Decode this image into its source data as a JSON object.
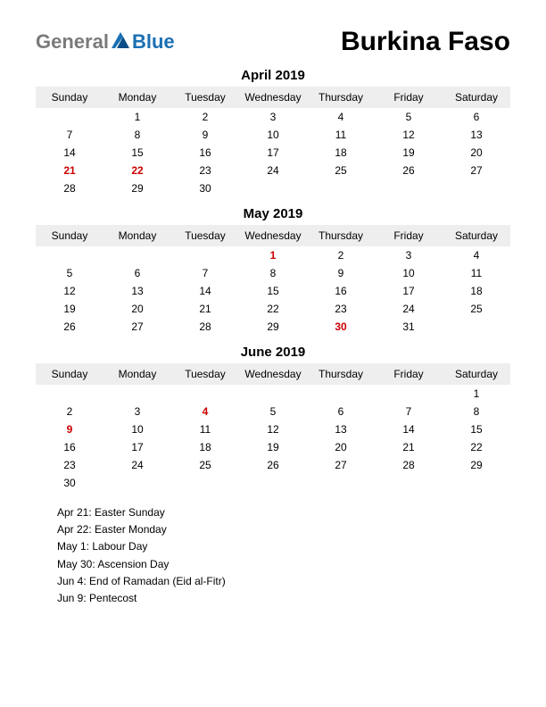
{
  "header": {
    "logo_general": "General",
    "logo_blue": "Blue",
    "country": "Burkina Faso"
  },
  "dayHeaders": [
    "Sunday",
    "Monday",
    "Tuesday",
    "Wednesday",
    "Thursday",
    "Friday",
    "Saturday"
  ],
  "months": [
    {
      "title": "April 2019",
      "weeks": [
        [
          {
            "d": ""
          },
          {
            "d": "1"
          },
          {
            "d": "2"
          },
          {
            "d": "3"
          },
          {
            "d": "4"
          },
          {
            "d": "5"
          },
          {
            "d": "6"
          }
        ],
        [
          {
            "d": "7"
          },
          {
            "d": "8"
          },
          {
            "d": "9"
          },
          {
            "d": "10"
          },
          {
            "d": "11"
          },
          {
            "d": "12"
          },
          {
            "d": "13"
          }
        ],
        [
          {
            "d": "14"
          },
          {
            "d": "15"
          },
          {
            "d": "16"
          },
          {
            "d": "17"
          },
          {
            "d": "18"
          },
          {
            "d": "19"
          },
          {
            "d": "20"
          }
        ],
        [
          {
            "d": "21",
            "h": true
          },
          {
            "d": "22",
            "h": true
          },
          {
            "d": "23"
          },
          {
            "d": "24"
          },
          {
            "d": "25"
          },
          {
            "d": "26"
          },
          {
            "d": "27"
          }
        ],
        [
          {
            "d": "28"
          },
          {
            "d": "29"
          },
          {
            "d": "30"
          },
          {
            "d": ""
          },
          {
            "d": ""
          },
          {
            "d": ""
          },
          {
            "d": ""
          }
        ]
      ]
    },
    {
      "title": "May 2019",
      "weeks": [
        [
          {
            "d": ""
          },
          {
            "d": ""
          },
          {
            "d": ""
          },
          {
            "d": "1",
            "h": true
          },
          {
            "d": "2"
          },
          {
            "d": "3"
          },
          {
            "d": "4"
          }
        ],
        [
          {
            "d": "5"
          },
          {
            "d": "6"
          },
          {
            "d": "7"
          },
          {
            "d": "8"
          },
          {
            "d": "9"
          },
          {
            "d": "10"
          },
          {
            "d": "11"
          }
        ],
        [
          {
            "d": "12"
          },
          {
            "d": "13"
          },
          {
            "d": "14"
          },
          {
            "d": "15"
          },
          {
            "d": "16"
          },
          {
            "d": "17"
          },
          {
            "d": "18"
          }
        ],
        [
          {
            "d": "19"
          },
          {
            "d": "20"
          },
          {
            "d": "21"
          },
          {
            "d": "22"
          },
          {
            "d": "23"
          },
          {
            "d": "24"
          },
          {
            "d": "25"
          }
        ],
        [
          {
            "d": "26"
          },
          {
            "d": "27"
          },
          {
            "d": "28"
          },
          {
            "d": "29"
          },
          {
            "d": "30",
            "h": true
          },
          {
            "d": "31"
          },
          {
            "d": ""
          }
        ]
      ]
    },
    {
      "title": "June 2019",
      "weeks": [
        [
          {
            "d": ""
          },
          {
            "d": ""
          },
          {
            "d": ""
          },
          {
            "d": ""
          },
          {
            "d": ""
          },
          {
            "d": ""
          },
          {
            "d": "1"
          }
        ],
        [
          {
            "d": "2"
          },
          {
            "d": "3"
          },
          {
            "d": "4",
            "h": true
          },
          {
            "d": "5"
          },
          {
            "d": "6"
          },
          {
            "d": "7"
          },
          {
            "d": "8"
          }
        ],
        [
          {
            "d": "9",
            "h": true
          },
          {
            "d": "10"
          },
          {
            "d": "11"
          },
          {
            "d": "12"
          },
          {
            "d": "13"
          },
          {
            "d": "14"
          },
          {
            "d": "15"
          }
        ],
        [
          {
            "d": "16"
          },
          {
            "d": "17"
          },
          {
            "d": "18"
          },
          {
            "d": "19"
          },
          {
            "d": "20"
          },
          {
            "d": "21"
          },
          {
            "d": "22"
          }
        ],
        [
          {
            "d": "23"
          },
          {
            "d": "24"
          },
          {
            "d": "25"
          },
          {
            "d": "26"
          },
          {
            "d": "27"
          },
          {
            "d": "28"
          },
          {
            "d": "29"
          }
        ],
        [
          {
            "d": "30"
          },
          {
            "d": ""
          },
          {
            "d": ""
          },
          {
            "d": ""
          },
          {
            "d": ""
          },
          {
            "d": ""
          },
          {
            "d": ""
          }
        ]
      ]
    }
  ],
  "holidays": [
    "Apr 21: Easter Sunday",
    "Apr 22: Easter Monday",
    "May 1: Labour Day",
    "May 30: Ascension Day",
    "Jun 4: End of Ramadan (Eid al-Fitr)",
    "Jun 9: Pentecost"
  ],
  "colors": {
    "holiday": "#cc0000",
    "header_bg": "#eeeeee",
    "logo_gray": "#7a7a7a",
    "logo_blue": "#1a6fb3"
  }
}
